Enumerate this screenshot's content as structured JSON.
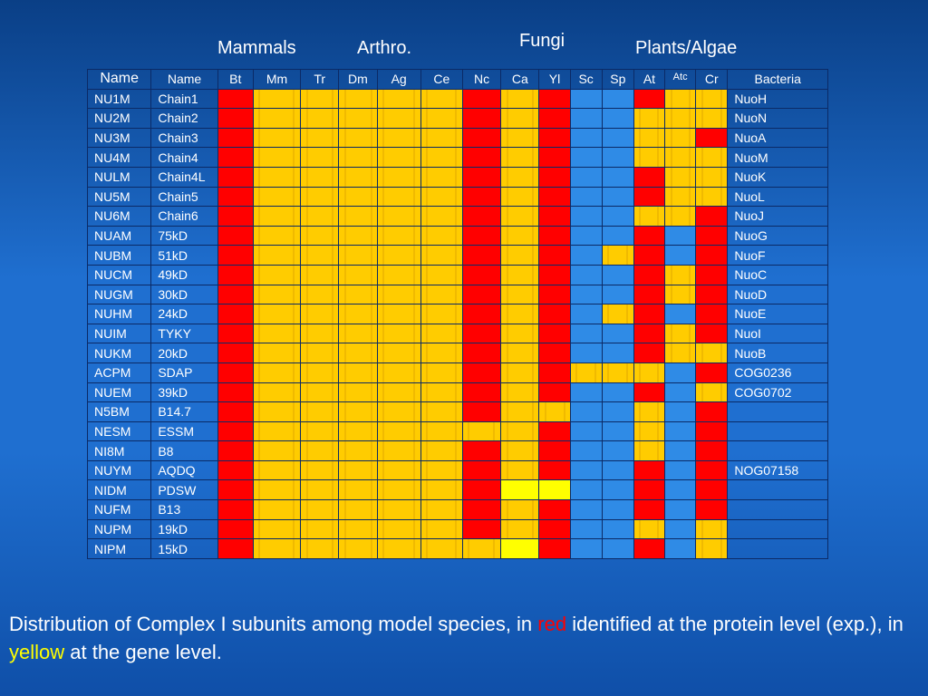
{
  "groups": {
    "mammals": "Mammals",
    "arthro": "Arthro.",
    "fungi": "Fungi",
    "plants": "Plants/Algae"
  },
  "table": {
    "headers": [
      "Name",
      "Name",
      "Bt",
      "Mm",
      "Tr",
      "Dm",
      "Ag",
      "Ce",
      "Nc",
      "Ca",
      "Yl",
      "Sc",
      "Sp",
      "At",
      "Atc",
      "Cr",
      "Bacteria"
    ],
    "rows": [
      {
        "name": "NU1M",
        "chain": "Chain1",
        "cells": "RYYYYYRYRBBRYY",
        "bacteria": "NuoH"
      },
      {
        "name": "NU2M",
        "chain": "Chain2",
        "cells": "RYYYYYRYRBBYYY",
        "bacteria": "NuoN"
      },
      {
        "name": "NU3M",
        "chain": "Chain3",
        "cells": "RYYYYYRYRBBYYR",
        "bacteria": "NuoA"
      },
      {
        "name": "NU4M",
        "chain": "Chain4",
        "cells": "RYYYYYRYRBBYYY",
        "bacteria": "NuoM"
      },
      {
        "name": "NULM",
        "chain": "Chain4L",
        "cells": "RYYYYYRYRBBRYY",
        "bacteria": "NuoK"
      },
      {
        "name": "NU5M",
        "chain": "Chain5",
        "cells": "RYYYYYRYRBBRYY",
        "bacteria": "NuoL"
      },
      {
        "name": "NU6M",
        "chain": "Chain6",
        "cells": "RYYYYYRYRBBYYR",
        "bacteria": "NuoJ"
      },
      {
        "name": "NUAM",
        "chain": "75kD",
        "cells": "RYYYYYRYRBBRBR",
        "bacteria": "NuoG"
      },
      {
        "name": "NUBM",
        "chain": "51kD",
        "cells": "RYYYYYRYRBYRBR",
        "bacteria": "NuoF"
      },
      {
        "name": "NUCM",
        "chain": "49kD",
        "cells": "RYYYYYRYRBBRYR",
        "bacteria": "NuoC"
      },
      {
        "name": "NUGM",
        "chain": "30kD",
        "cells": "RYYYYYRYRBBRYR",
        "bacteria": "NuoD"
      },
      {
        "name": "NUHM",
        "chain": "24kD",
        "cells": "RYYYYYRYRBYRBR",
        "bacteria": "NuoE"
      },
      {
        "name": "NUIM",
        "chain": "TYKY",
        "cells": "RYYYYYRYRBBRYR",
        "bacteria": "NuoI"
      },
      {
        "name": "NUKM",
        "chain": "20kD",
        "cells": "RYYYYYRYRBBRYY",
        "bacteria": "NuoB"
      },
      {
        "name": "ACPM",
        "chain": "SDAP",
        "cells": "RYYYYYRYRYYYBR",
        "bacteria": "COG0236"
      },
      {
        "name": "NUEM",
        "chain": "39kD",
        "cells": "RYYYYYRYRBBRBY",
        "bacteria": "COG0702"
      },
      {
        "name": "N5BM",
        "chain": "B14.7",
        "cells": "RYYYYYRYYBBYBR",
        "bacteria": ""
      },
      {
        "name": "NESM",
        "chain": "ESSM",
        "cells": "RYYYYYYYRBBYBR",
        "bacteria": ""
      },
      {
        "name": "NI8M",
        "chain": "B8",
        "cells": "RYYYYYRYRBBYBR",
        "bacteria": ""
      },
      {
        "name": "NUYM",
        "chain": "AQDQ",
        "cells": "RYYYYYRYRBBRBR",
        "bacteria": "NOG07158"
      },
      {
        "name": "NIDM",
        "chain": "PDSW",
        "cells": "RYYYYYRLLBBRBR",
        "bacteria": ""
      },
      {
        "name": "NUFM",
        "chain": "B13",
        "cells": "RYYYYYRYRBBRBR",
        "bacteria": ""
      },
      {
        "name": "NUPM",
        "chain": "19kD",
        "cells": "RYYYYYRYRBBYBY",
        "bacteria": ""
      },
      {
        "name": "NIPM",
        "chain": "15kD",
        "cells": "RYYYYYYLRBBRBY",
        "bacteria": ""
      }
    ]
  },
  "legend": {
    "red": "#ff0000",
    "yellow": "#ffcc00",
    "light_yellow": "#ffff00",
    "blue": "#2f8be6"
  },
  "caption": {
    "part1": "Distribution of Complex I subunits among model species, in ",
    "red_word": "red",
    "part2": " identified at the protein level (exp.), in ",
    "yellow_word": "yellow",
    "part3": " at the gene level."
  }
}
